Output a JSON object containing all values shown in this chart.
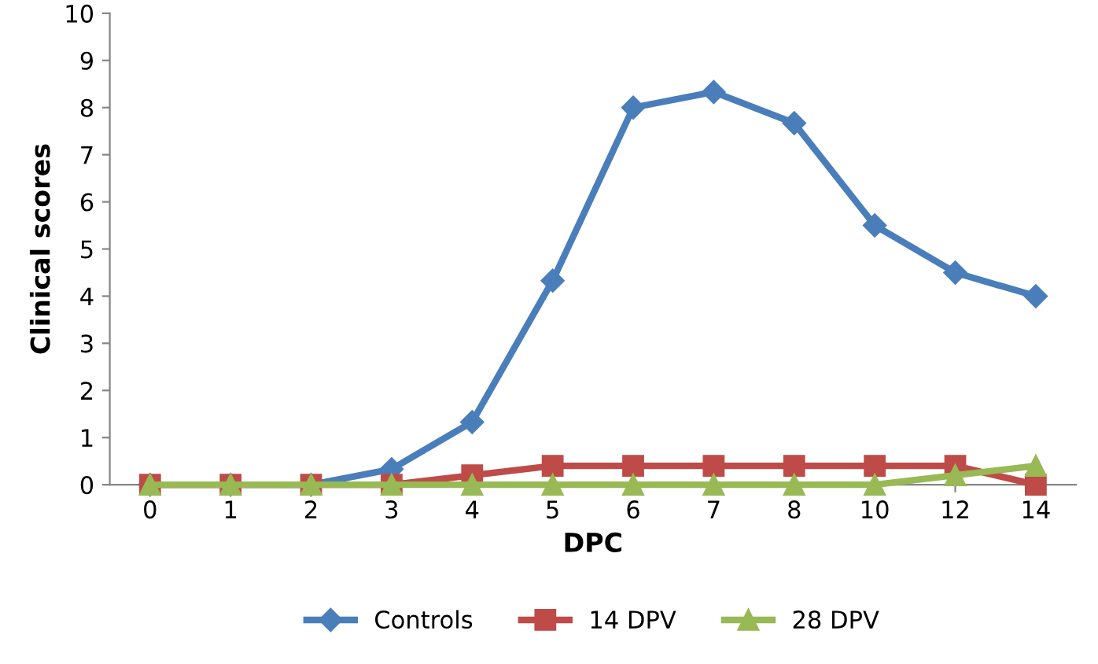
{
  "chart_data": {
    "type": "line",
    "xlabel": "DPC",
    "ylabel": "Clinical scores",
    "categories": [
      "0",
      "1",
      "2",
      "3",
      "4",
      "5",
      "6",
      "7",
      "8",
      "10",
      "12",
      "14"
    ],
    "series": [
      {
        "name": "Controls",
        "color": "#4a7ebb",
        "marker": "diamond",
        "values": [
          0,
          0,
          0,
          0.33,
          1.33,
          4.33,
          8,
          8.33,
          7.67,
          5.5,
          4.5,
          4
        ]
      },
      {
        "name": "14 DPV",
        "color": "#be4b48",
        "marker": "square",
        "values": [
          0,
          0,
          0,
          0,
          0.2,
          0.4,
          0.4,
          0.4,
          0.4,
          0.4,
          0.4,
          0
        ]
      },
      {
        "name": "28 DPV",
        "color": "#98b954",
        "marker": "triangle",
        "values": [
          0,
          0,
          0,
          0,
          0,
          0,
          0,
          0,
          0,
          0,
          0.2,
          0.4
        ]
      }
    ],
    "ylim": [
      0,
      10
    ],
    "yticks": [
      0,
      1,
      2,
      3,
      4,
      5,
      6,
      7,
      8,
      9,
      10
    ],
    "grid": false,
    "legend": "bottom",
    "line_style": "solid"
  }
}
